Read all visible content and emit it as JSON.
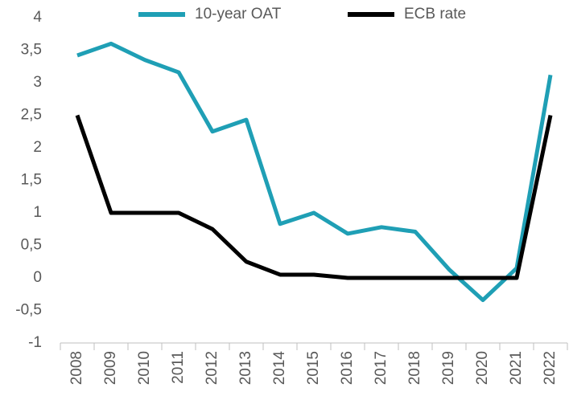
{
  "chart_data": {
    "type": "line",
    "categories": [
      "2008",
      "2009",
      "2010",
      "2011",
      "2012",
      "2013",
      "2014",
      "2015",
      "2016",
      "2017",
      "2018",
      "2019",
      "2020",
      "2021",
      "2022"
    ],
    "series": [
      {
        "name": "10-year OAT",
        "color": "#1f9fb5",
        "values": [
          3.42,
          3.6,
          3.35,
          3.16,
          2.25,
          2.43,
          0.83,
          1.0,
          0.68,
          0.78,
          0.71,
          0.13,
          -0.34,
          0.15,
          3.12
        ]
      },
      {
        "name": "ECB rate",
        "color": "#000000",
        "values": [
          2.5,
          1,
          1,
          1,
          0.75,
          0.25,
          0.05,
          0.05,
          0,
          0,
          0,
          0,
          0,
          0,
          2.5
        ]
      }
    ],
    "ylim": [
      -1,
      4
    ],
    "yticks": [
      -1,
      {
        "value": -0.5,
        "label": "-0,5"
      },
      0,
      {
        "value": 0.5,
        "label": "0,5"
      },
      1,
      {
        "value": 1.5,
        "label": "1,5"
      },
      2,
      {
        "value": 2.5,
        "label": "2,5"
      },
      3,
      {
        "value": 3.5,
        "label": "3,5"
      },
      4
    ],
    "grid": false,
    "legend": "top"
  }
}
